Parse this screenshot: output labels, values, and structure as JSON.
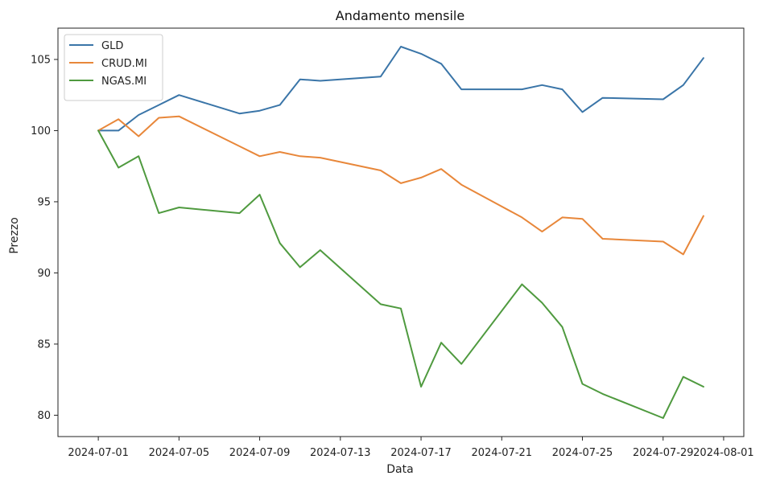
{
  "chart_data": {
    "type": "line",
    "title": "Andamento mensile",
    "xlabel": "Data",
    "ylabel": "Prezzo",
    "x_ticks": [
      "2024-07-01",
      "2024-07-05",
      "2024-07-09",
      "2024-07-13",
      "2024-07-17",
      "2024-07-21",
      "2024-07-25",
      "2024-07-29",
      "2024-08-01"
    ],
    "y_ticks": [
      80,
      85,
      90,
      95,
      100,
      105
    ],
    "xlim": [
      "2024-06-29",
      "2024-08-02"
    ],
    "ylim": [
      78.5,
      107.2
    ],
    "grid": false,
    "legend_position": "top-left",
    "x": [
      "2024-07-01",
      "2024-07-02",
      "2024-07-03",
      "2024-07-04",
      "2024-07-05",
      "2024-07-08",
      "2024-07-09",
      "2024-07-10",
      "2024-07-11",
      "2024-07-12",
      "2024-07-15",
      "2024-07-16",
      "2024-07-17",
      "2024-07-18",
      "2024-07-19",
      "2024-07-22",
      "2024-07-23",
      "2024-07-24",
      "2024-07-25",
      "2024-07-26",
      "2024-07-29",
      "2024-07-30",
      "2024-07-31"
    ],
    "series": [
      {
        "name": "GLD",
        "color": "#3a75a8",
        "values": [
          100.0,
          100.0,
          101.1,
          101.8,
          102.5,
          101.2,
          101.4,
          101.8,
          103.6,
          103.5,
          103.8,
          105.9,
          105.4,
          104.7,
          102.9,
          102.9,
          103.2,
          102.9,
          101.3,
          102.3,
          102.2,
          103.2,
          105.1
        ]
      },
      {
        "name": "CRUD.MI",
        "color": "#e8873a",
        "values": [
          100.0,
          100.8,
          99.6,
          100.9,
          101.0,
          98.9,
          98.2,
          98.5,
          98.2,
          98.1,
          97.2,
          96.3,
          96.7,
          97.3,
          96.2,
          93.9,
          92.9,
          93.9,
          93.8,
          92.4,
          92.2,
          91.3,
          94.0
        ]
      },
      {
        "name": "NGAS.MI",
        "color": "#4f9a3f",
        "values": [
          100.0,
          97.4,
          98.2,
          94.2,
          94.6,
          94.2,
          95.5,
          92.1,
          90.4,
          91.6,
          87.8,
          87.5,
          82.0,
          85.1,
          83.6,
          89.2,
          87.9,
          86.2,
          82.2,
          81.5,
          79.8,
          82.7,
          82.0
        ]
      }
    ]
  }
}
